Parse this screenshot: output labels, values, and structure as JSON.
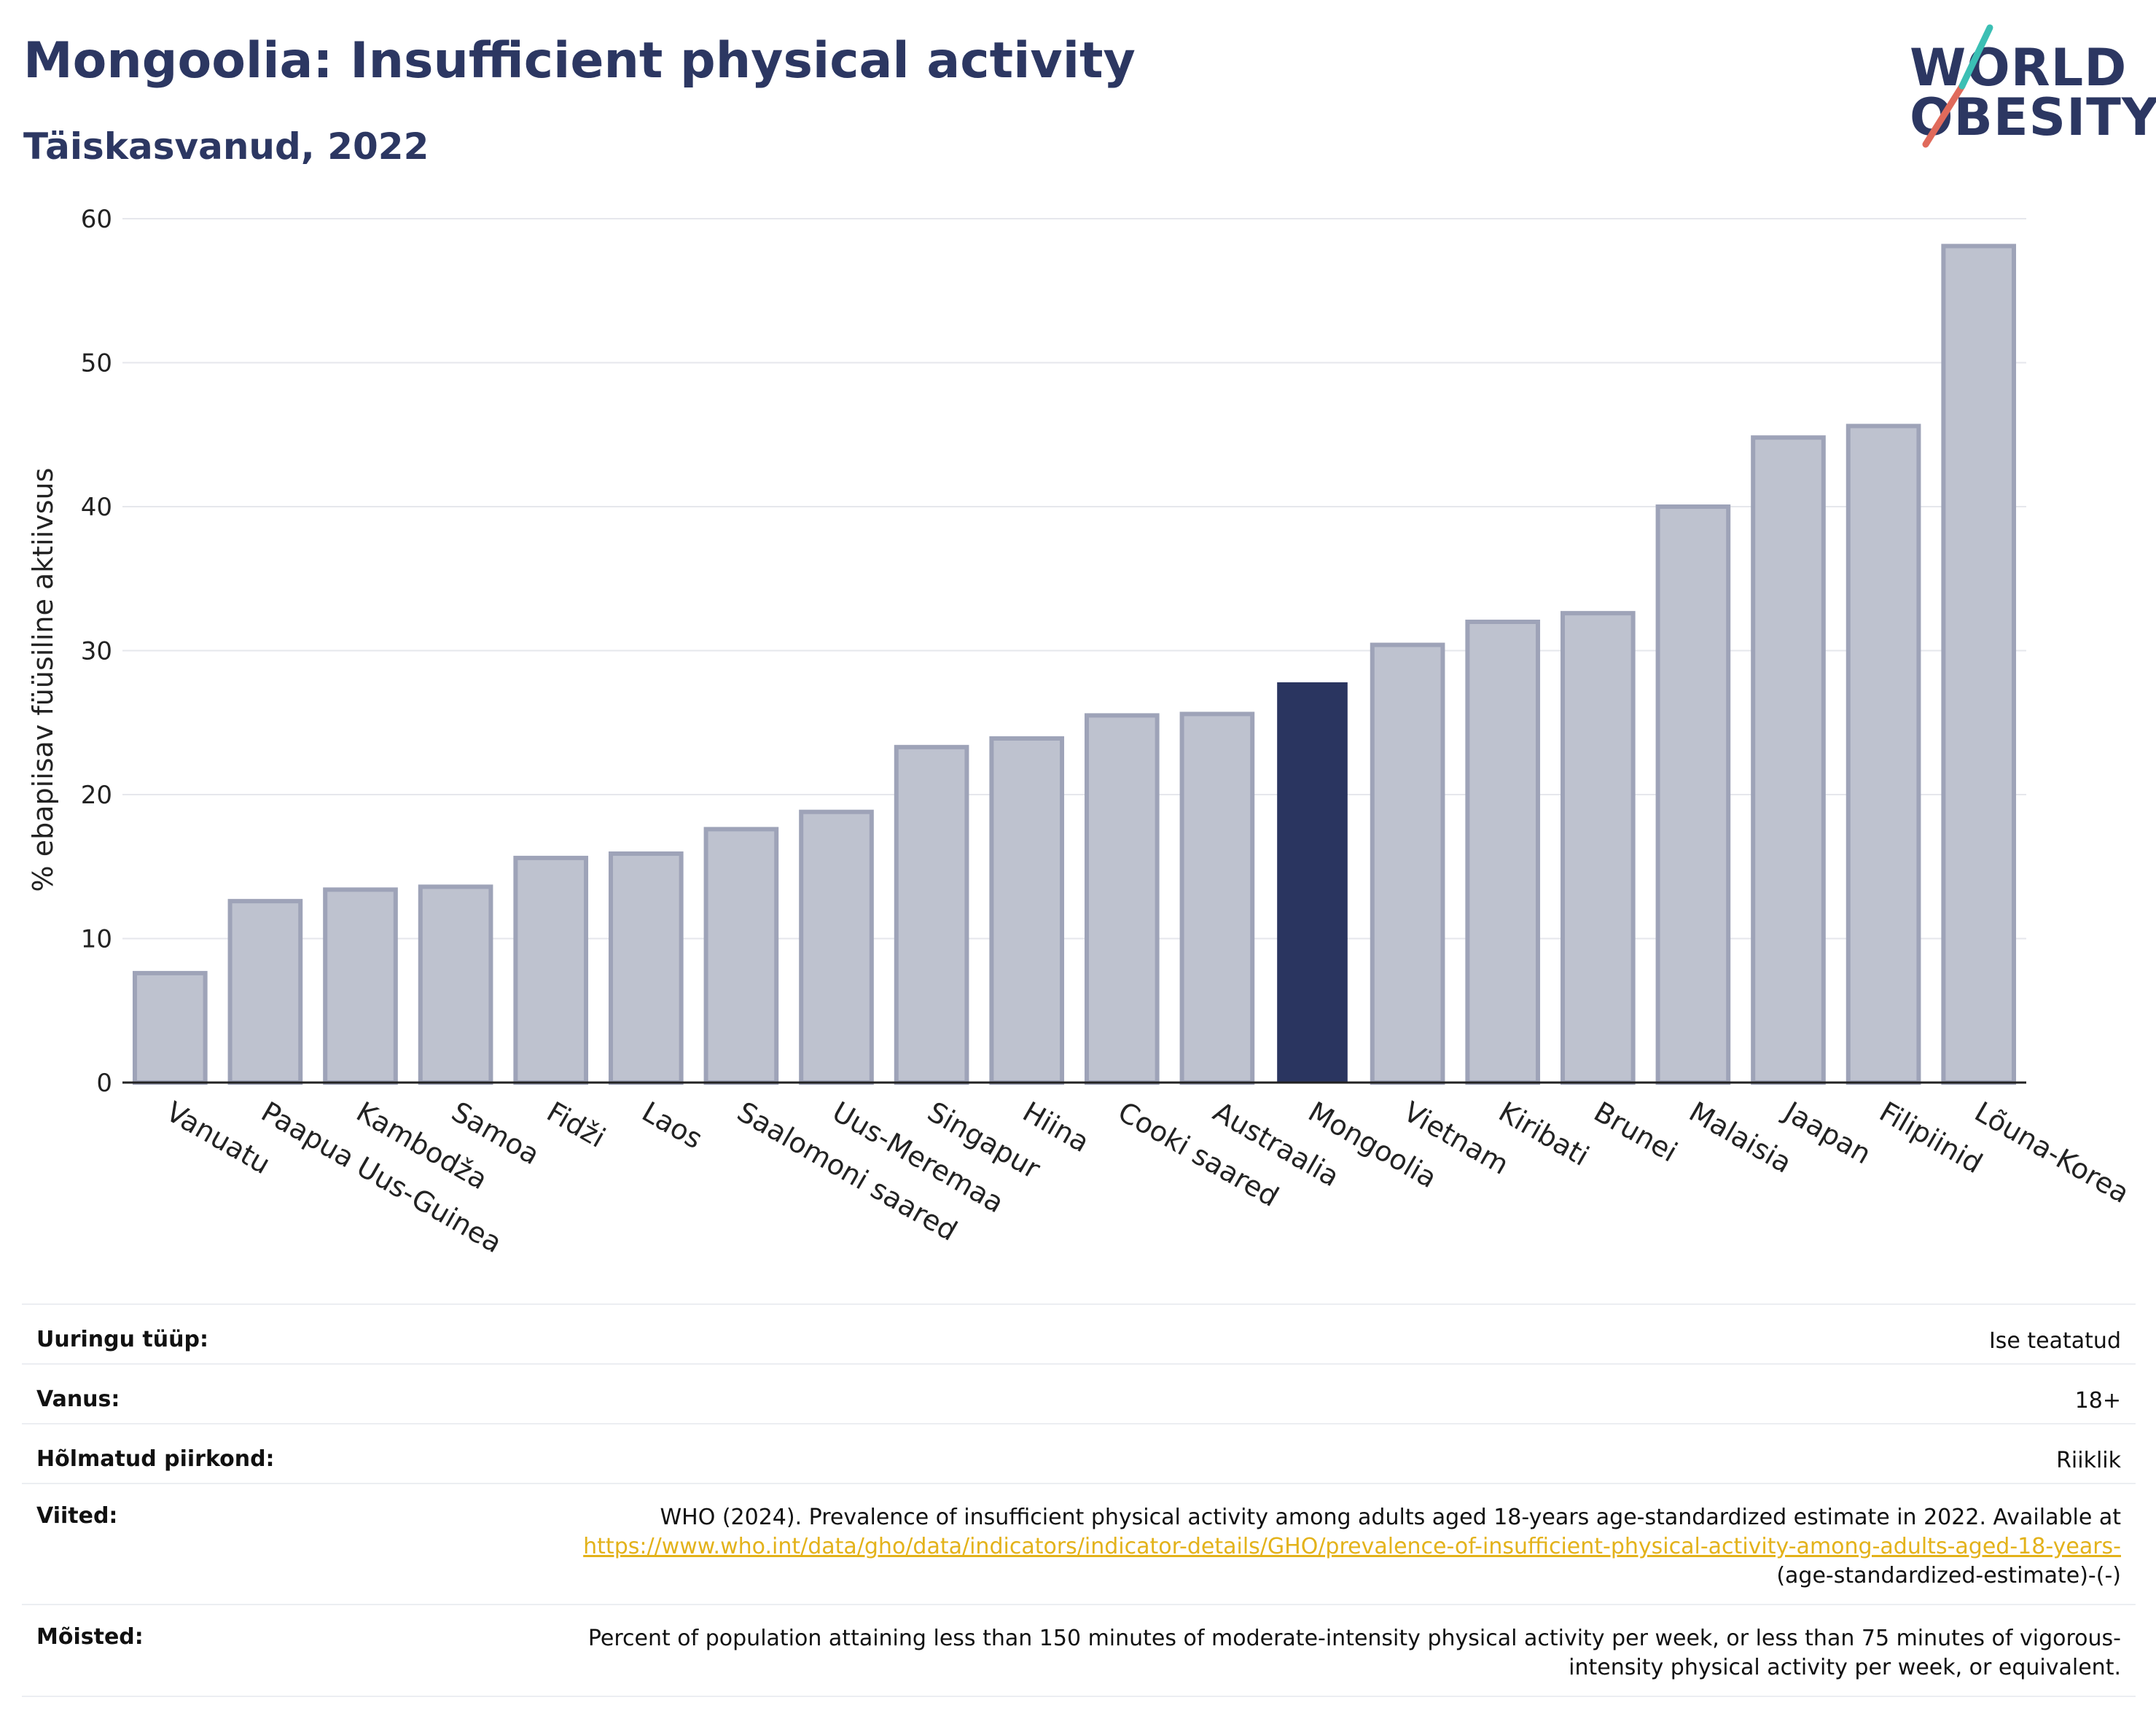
{
  "header": {
    "title": "Mongoolia: Insufficient physical activity",
    "subtitle": "Täiskasvanud, 2022",
    "logo_line1": "WORLD",
    "logo_line2": "OBESITY"
  },
  "colors": {
    "bar": "#bec2cf",
    "bar_stroke": "#9ea3b8",
    "highlight": "#2a3560",
    "grid": "#e6e7ec",
    "text": "#222222",
    "logo_teal": "#3bbfb4",
    "logo_red": "#e06a5b",
    "link": "#e3b21a"
  },
  "chart_data": {
    "type": "bar",
    "ylabel": "% ebapiisav füüsiline aktiivsus",
    "ylim": [
      0,
      60
    ],
    "yticks": [
      0,
      10,
      20,
      30,
      40,
      50,
      60
    ],
    "grid": true,
    "highlight": "Mongoolia",
    "categories": [
      "Vanuatu",
      "Paapua Uus-Guinea",
      "Kambodža",
      "Samoa",
      "Fidži",
      "Laos",
      "Saalomoni saared",
      "Uus-Meremaa",
      "Singapur",
      "Hiina",
      "Cooki saared",
      "Austraalia",
      "Mongoolia",
      "Vietnam",
      "Kiribati",
      "Brunei",
      "Malaisia",
      "Jaapan",
      "Filipiinid",
      "Lõuna-Korea"
    ],
    "values": [
      7.6,
      12.6,
      13.4,
      13.6,
      15.6,
      15.9,
      17.6,
      18.8,
      23.3,
      23.9,
      25.5,
      25.6,
      27.8,
      30.4,
      32.0,
      32.6,
      40.0,
      44.8,
      45.6,
      58.1
    ]
  },
  "meta": {
    "rows": [
      {
        "label": "Uuringu tüüp:",
        "value": "Ise teatatud"
      },
      {
        "label": "Vanus:",
        "value": "18+"
      },
      {
        "label": "Hõlmatud piirkond:",
        "value": "Riiklik"
      }
    ],
    "references": {
      "label": "Viited:",
      "text": "WHO (2024). Prevalence of insufficient physical activity among adults aged 18-years age-standardized estimate in 2022. Available at",
      "link": "https://www.who.int/data/gho/data/indicators/indicator-details/GHO/prevalence-of-insufficient-physical-activity-among-adults-aged-18-years-",
      "suffix": "(age-standardized-estimate)-(-)"
    },
    "definitions": {
      "label": "Mõisted:",
      "value": "Percent of population attaining less than 150 minutes of moderate-intensity physical activity per week, or less than 75 minutes of vigorous-intensity physical activity per week, or equivalent."
    }
  }
}
